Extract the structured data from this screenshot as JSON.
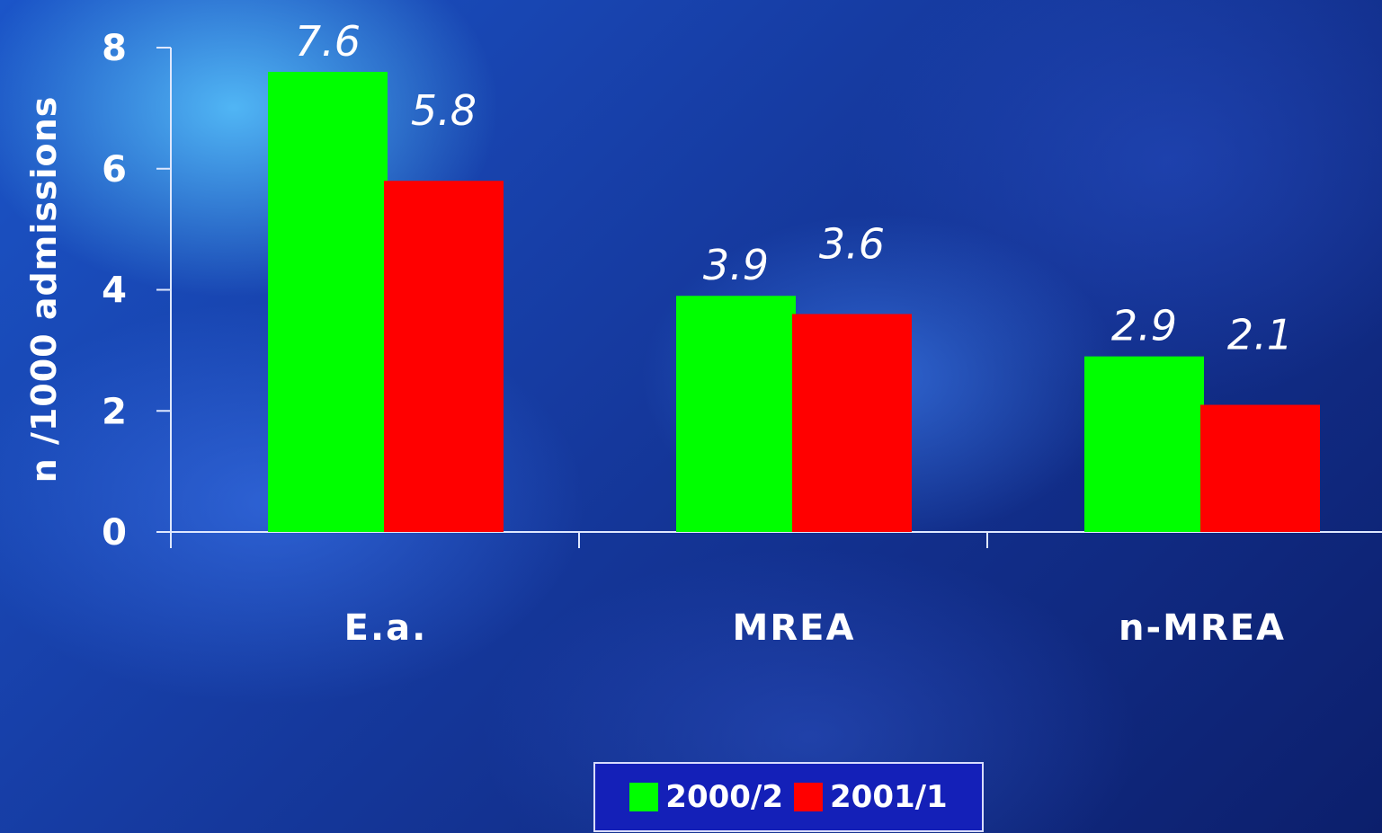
{
  "chart_data": {
    "type": "bar",
    "categories": [
      "E.a.",
      "MREA",
      "n-MREA"
    ],
    "series": [
      {
        "name": "2000/2",
        "values": [
          7.6,
          3.9,
          2.9
        ],
        "color": "#00ff00"
      },
      {
        "name": "2001/1",
        "values": [
          5.8,
          3.6,
          2.1
        ],
        "color": "#ff0000"
      }
    ],
    "data_labels": [
      [
        "7.6",
        "3.9",
        "2.9"
      ],
      [
        "5.8",
        "3.6",
        "2.1"
      ]
    ],
    "ylabel": "n /1000 admissions",
    "xlabel": "",
    "ylim": [
      0,
      8
    ],
    "yticks": [
      "0",
      "2",
      "4",
      "6",
      "8"
    ],
    "grid": false,
    "legend_position": "bottom"
  },
  "legend": {
    "items": [
      {
        "label": "2000/2",
        "color": "#00ff00"
      },
      {
        "label": "2001/1",
        "color": "#ff0000"
      }
    ]
  }
}
